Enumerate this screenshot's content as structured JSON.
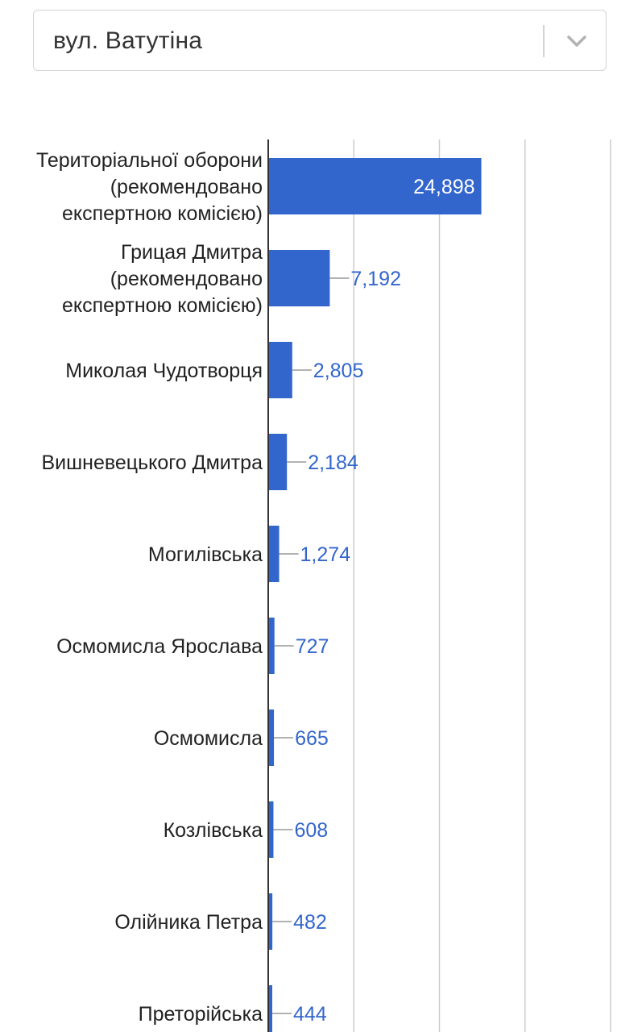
{
  "filter": {
    "selected": "вул. Ватутіна"
  },
  "colors": {
    "bar": "#3366cc",
    "grid": "#cccccc",
    "axis": "#333333",
    "label": "#222222"
  },
  "chart_data": {
    "type": "bar",
    "orientation": "horizontal",
    "grid": true,
    "categories": [
      [
        "Територіальної оборони",
        "(рекомендовано",
        "експертною комісією)"
      ],
      [
        "Грицая Дмитра",
        "(рекомендовано",
        "експертною комісією)"
      ],
      [
        "Миколая Чудотворця"
      ],
      [
        "Вишневецького Дмитра"
      ],
      [
        "Могилівська"
      ],
      [
        "Осмомисла Ярослава"
      ],
      [
        "Осмомисла"
      ],
      [
        "Козлівська"
      ],
      [
        "Олійника Петра"
      ],
      [
        "Преторійська"
      ]
    ],
    "values": [
      24898,
      7192,
      2805,
      2184,
      1274,
      727,
      665,
      608,
      482,
      444
    ],
    "value_labels": [
      "24,898",
      "7,192",
      "2,805",
      "2,184",
      "1,274",
      "727",
      "665",
      "608",
      "482",
      "444"
    ],
    "xlim": [
      0,
      40000
    ],
    "x_gridlines": [
      10000,
      20000,
      30000,
      40000
    ]
  }
}
